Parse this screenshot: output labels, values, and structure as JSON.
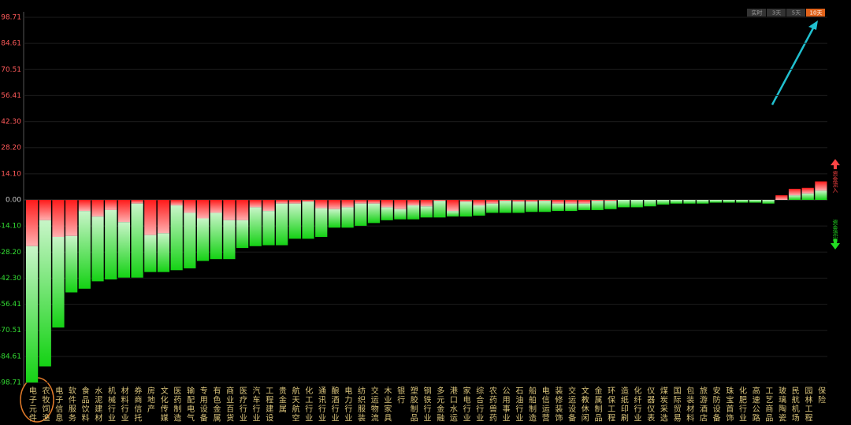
{
  "chart_data": {
    "type": "bar",
    "categories": [
      "电子元件",
      "农牧饲渔",
      "电子信息",
      "软件服务",
      "食品饮料",
      "水泥建材",
      "机械行业",
      "材料行业",
      "券商信托",
      "房地产",
      "文化传媒",
      "医药制造",
      "输配电气",
      "专用设备",
      "有色金属",
      "商业百货",
      "医疗行业",
      "汽车行业",
      "工程建设",
      "贵金属",
      "航天航空",
      "化工行业",
      "通讯行业",
      "酿酒行业",
      "电力行业",
      "纺织服装",
      "交运物流",
      "木业家具",
      "银行",
      "塑胶制品",
      "钢铁行业",
      "多元金融",
      "港口水运",
      "家电行业",
      "综合行业",
      "农药兽药",
      "公用事业",
      "石油行业",
      "船舶制造",
      "电信运营",
      "装修装饰",
      "交运设备",
      "文教休闲",
      "金属制品",
      "环保工程",
      "造纸印刷",
      "化纤行业",
      "仪器仪表",
      "煤炭采选",
      "国际贸易",
      "包装材料",
      "旅游酒店",
      "安防设备",
      "珠宝首饰",
      "化肥行业",
      "高速公路",
      "工艺商品",
      "玻璃陶瓷",
      "民航机场",
      "园林工程",
      "保险"
    ],
    "series": [
      {
        "name": "资金流入",
        "color": "#ff2a2a",
        "values": [
          -25,
          -11,
          -20,
          -19.5,
          -6,
          -9,
          -5.5,
          -12,
          -2,
          -19,
          -18,
          -3,
          -7,
          -10,
          -7,
          -11,
          -11,
          -4,
          -6,
          -2,
          -2,
          -1,
          -4.5,
          -5,
          -4,
          -2,
          -2,
          -4,
          -5,
          -3,
          -3.5,
          -0.5,
          -6,
          -1,
          -3,
          -2,
          -0.5,
          -1,
          -1,
          -0.5,
          -2,
          -2,
          -2,
          -0.5,
          -0.5,
          0,
          0,
          0,
          0,
          0,
          0,
          0,
          0,
          0,
          0,
          0,
          0,
          2.5,
          3.5,
          3,
          5
        ]
      },
      {
        "name": "资金流出",
        "color": "#22dd22",
        "values": [
          -73.71,
          -79,
          -49,
          -30.5,
          -42,
          -35,
          -37.5,
          -30,
          -40,
          -20,
          -21,
          -35,
          -30,
          -23,
          -25,
          -21,
          -15,
          -21,
          -18.5,
          -22.5,
          -19,
          -20,
          -15.5,
          -10,
          -11,
          -12,
          -10.5,
          -7,
          -5.5,
          -7.5,
          -6,
          -9,
          -3,
          -8,
          -5.5,
          -5,
          -6.5,
          -6,
          -5.5,
          -6,
          -4,
          -4,
          -3.5,
          -5,
          -4.5,
          -4,
          -4,
          -3.5,
          -2.5,
          -2,
          -2,
          -2,
          -1.5,
          -1.5,
          -1.5,
          -1.5,
          -2,
          0,
          2.5,
          3.5,
          5
        ]
      }
    ],
    "ylim": [
      -98.71,
      98.71
    ],
    "yticks": [
      98.71,
      84.61,
      70.51,
      56.41,
      {
        "value": 42.3,
        "label": "42.30"
      },
      {
        "value": 28.2,
        "label": "28.20"
      },
      {
        "value": 14.1,
        "label": "14.10"
      },
      {
        "value": 0,
        "label": "0.00"
      },
      {
        "value": -14.1,
        "label": "-14.10"
      },
      {
        "value": -28.2,
        "label": "-28.20"
      },
      {
        "value": -42.3,
        "label": "-42.30"
      },
      -56.41,
      -70.51,
      -84.61,
      -98.71
    ],
    "grid": true
  },
  "controls": {
    "buttons": [
      "实时",
      "3天",
      "5天",
      "10天"
    ],
    "active": 3
  }
}
